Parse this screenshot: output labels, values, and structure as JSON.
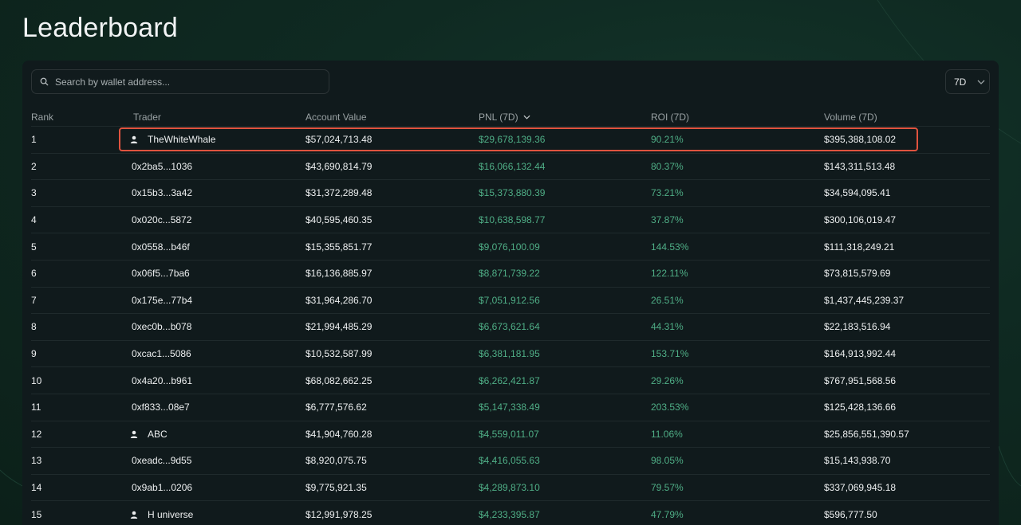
{
  "page": {
    "title": "Leaderboard"
  },
  "search": {
    "placeholder": "Search by wallet address..."
  },
  "period_select": {
    "value": "7D"
  },
  "columns": {
    "rank": "Rank",
    "trader": "Trader",
    "account_value": "Account Value",
    "pnl": "PNL (7D)",
    "roi": "ROI (7D)",
    "volume": "Volume (7D)"
  },
  "colors": {
    "positive": "#4fae86",
    "highlight": "#e0533f",
    "background": "#0f2a22"
  },
  "rows": [
    {
      "rank": "1",
      "trader": "TheWhiteWhale",
      "named": true,
      "account_value": "$57,024,713.48",
      "pnl": "$29,678,139.36",
      "roi": "90.21%",
      "volume": "$395,388,108.02"
    },
    {
      "rank": "2",
      "trader": "0x2ba5...1036",
      "named": false,
      "account_value": "$43,690,814.79",
      "pnl": "$16,066,132.44",
      "roi": "80.37%",
      "volume": "$143,311,513.48"
    },
    {
      "rank": "3",
      "trader": "0x15b3...3a42",
      "named": false,
      "account_value": "$31,372,289.48",
      "pnl": "$15,373,880.39",
      "roi": "73.21%",
      "volume": "$34,594,095.41"
    },
    {
      "rank": "4",
      "trader": "0x020c...5872",
      "named": false,
      "account_value": "$40,595,460.35",
      "pnl": "$10,638,598.77",
      "roi": "37.87%",
      "volume": "$300,106,019.47"
    },
    {
      "rank": "5",
      "trader": "0x0558...b46f",
      "named": false,
      "account_value": "$15,355,851.77",
      "pnl": "$9,076,100.09",
      "roi": "144.53%",
      "volume": "$111,318,249.21"
    },
    {
      "rank": "6",
      "trader": "0x06f5...7ba6",
      "named": false,
      "account_value": "$16,136,885.97",
      "pnl": "$8,871,739.22",
      "roi": "122.11%",
      "volume": "$73,815,579.69"
    },
    {
      "rank": "7",
      "trader": "0x175e...77b4",
      "named": false,
      "account_value": "$31,964,286.70",
      "pnl": "$7,051,912.56",
      "roi": "26.51%",
      "volume": "$1,437,445,239.37"
    },
    {
      "rank": "8",
      "trader": "0xec0b...b078",
      "named": false,
      "account_value": "$21,994,485.29",
      "pnl": "$6,673,621.64",
      "roi": "44.31%",
      "volume": "$22,183,516.94"
    },
    {
      "rank": "9",
      "trader": "0xcac1...5086",
      "named": false,
      "account_value": "$10,532,587.99",
      "pnl": "$6,381,181.95",
      "roi": "153.71%",
      "volume": "$164,913,992.44"
    },
    {
      "rank": "10",
      "trader": "0x4a20...b961",
      "named": false,
      "account_value": "$68,082,662.25",
      "pnl": "$6,262,421.87",
      "roi": "29.26%",
      "volume": "$767,951,568.56"
    },
    {
      "rank": "11",
      "trader": "0xf833...08e7",
      "named": false,
      "account_value": "$6,777,576.62",
      "pnl": "$5,147,338.49",
      "roi": "203.53%",
      "volume": "$125,428,136.66"
    },
    {
      "rank": "12",
      "trader": "ABC",
      "named": true,
      "account_value": "$41,904,760.28",
      "pnl": "$4,559,011.07",
      "roi": "11.06%",
      "volume": "$25,856,551,390.57"
    },
    {
      "rank": "13",
      "trader": "0xeadc...9d55",
      "named": false,
      "account_value": "$8,920,075.75",
      "pnl": "$4,416,055.63",
      "roi": "98.05%",
      "volume": "$15,143,938.70"
    },
    {
      "rank": "14",
      "trader": "0x9ab1...0206",
      "named": false,
      "account_value": "$9,775,921.35",
      "pnl": "$4,289,873.10",
      "roi": "79.57%",
      "volume": "$337,069,945.18"
    },
    {
      "rank": "15",
      "trader": "H universe",
      "named": true,
      "account_value": "$12,991,978.25",
      "pnl": "$4,233,395.87",
      "roi": "47.79%",
      "volume": "$596,777.50"
    }
  ]
}
